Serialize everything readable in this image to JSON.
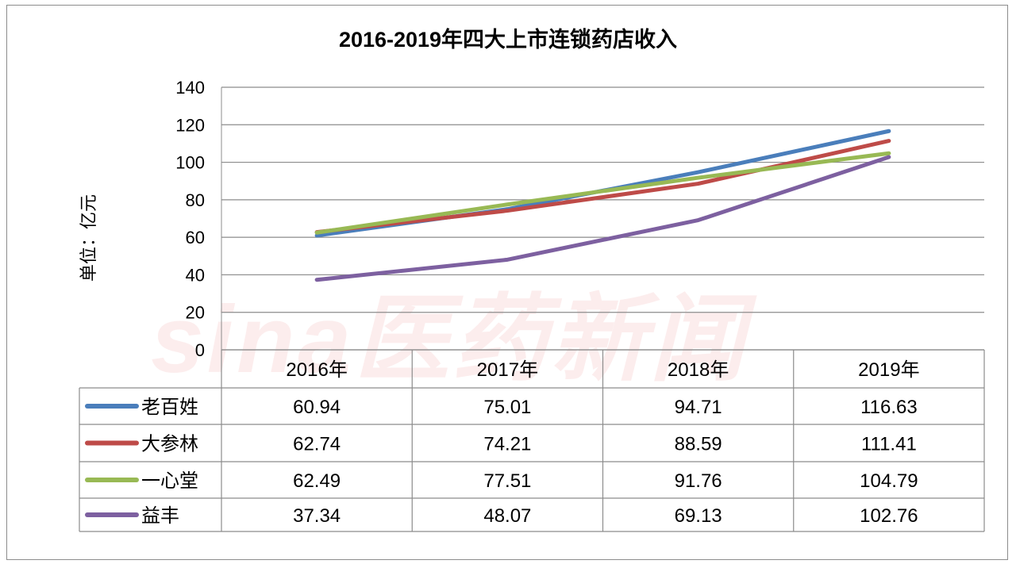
{
  "watermark": "sina医药新闻",
  "chart_data": {
    "type": "line",
    "title": "2016-2019年四大上市连锁药店收入",
    "ylabel": "单位：亿元",
    "xlabel": "",
    "ylim": [
      0,
      140
    ],
    "yticks": [
      "0",
      "20",
      "40",
      "60",
      "80",
      "100",
      "120",
      "140"
    ],
    "ytick_values": [
      0,
      20,
      40,
      60,
      80,
      100,
      120,
      140
    ],
    "grid": true,
    "legend": "data-table",
    "categories": [
      "2016年",
      "2017年",
      "2018年",
      "2019年"
    ],
    "series": [
      {
        "name": "老百姓",
        "color": "#4a7ebb",
        "values": [
          60.94,
          75.01,
          94.71,
          116.63
        ],
        "labels": [
          "60.94",
          "75.01",
          "94.71",
          "116.63"
        ]
      },
      {
        "name": "大参林",
        "color": "#be4b48",
        "values": [
          62.74,
          74.21,
          88.59,
          111.41
        ],
        "labels": [
          "62.74",
          "74.21",
          "88.59",
          "111.41"
        ]
      },
      {
        "name": "一心堂",
        "color": "#98b954",
        "values": [
          62.49,
          77.51,
          91.76,
          104.79
        ],
        "labels": [
          "62.49",
          "77.51",
          "91.76",
          "104.79"
        ]
      },
      {
        "name": "益丰",
        "color": "#7d60a0",
        "values": [
          37.34,
          48.07,
          69.13,
          102.76
        ],
        "labels": [
          "37.34",
          "48.07",
          "69.13",
          "102.76"
        ]
      }
    ]
  }
}
